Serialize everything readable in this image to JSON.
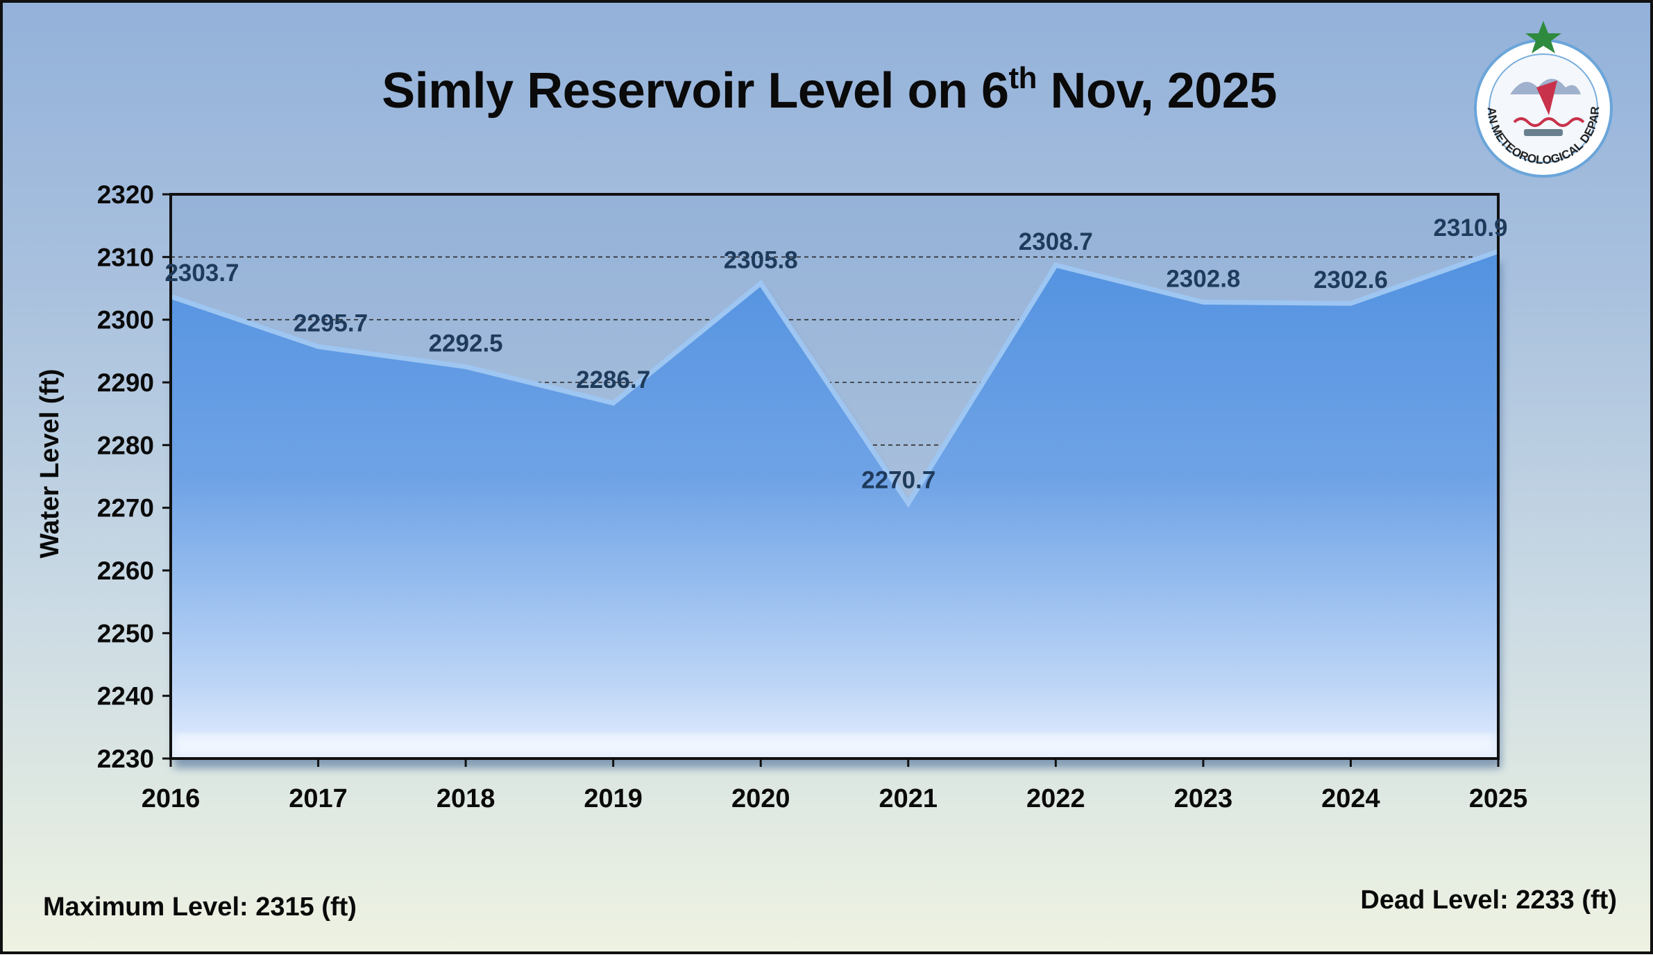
{
  "title_main": "Simly Reservoir Level on 6",
  "title_sup": "th",
  "title_tail": " Nov, 2025",
  "footer": {
    "max_level": "Maximum Level: 2315 (ft)",
    "dead_level": "Dead Level: 2233 (ft)"
  },
  "logo": {
    "text": "PAKISTAN METEOROLOGICAL DEPARTMENT",
    "colors": {
      "ring": "#6aa5d9",
      "star": "#2e8b3e",
      "accent": "#c8324a"
    }
  },
  "colors": {
    "area_top": "#5392e0",
    "area_bottom": "#e4eeff",
    "line": "#9ec6f2",
    "label": "#1f3b5c",
    "axis": "#111111"
  },
  "chart_data": {
    "type": "area",
    "title": "Simly Reservoir Level on 6th Nov, 2025",
    "xlabel": "",
    "ylabel": "Water Level (ft)",
    "categories": [
      "2016",
      "2017",
      "2018",
      "2019",
      "2020",
      "2021",
      "2022",
      "2023",
      "2024",
      "2025"
    ],
    "values": [
      2303.7,
      2295.7,
      2292.5,
      2286.7,
      2305.8,
      2270.7,
      2308.7,
      2302.8,
      2302.6,
      2310.9
    ],
    "data_labels": [
      "2303.7",
      "2295.7",
      "2292.5",
      "2286.7",
      "2305.8",
      "2270.7",
      "2308.7",
      "2302.8",
      "2302.6",
      "2310.9"
    ],
    "ylim": [
      2230,
      2320
    ],
    "yticks": [
      2230,
      2240,
      2250,
      2260,
      2270,
      2280,
      2290,
      2300,
      2310,
      2320
    ],
    "grid": "dashed at 2280, 2290, 2300, 2310",
    "legend": "none"
  }
}
